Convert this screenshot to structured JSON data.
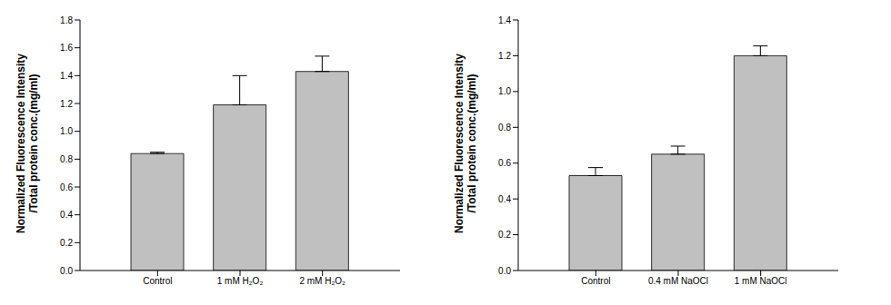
{
  "chart_data": [
    {
      "type": "bar",
      "ylabel": "Normalized Fluorescence Intensity\n/Total protein conc.(mg/ml)",
      "categories": [
        "Control",
        "1 mM H₂O₂",
        "2 mM H₂O₂"
      ],
      "values": [
        0.84,
        1.19,
        1.43
      ],
      "errors": [
        0.01,
        0.21,
        0.11
      ],
      "color": "#c0c0c0",
      "ylim": [
        0,
        1.8
      ],
      "yticks": [
        {
          "value": 0,
          "label": "0.0"
        },
        0.2,
        0.4,
        0.6,
        0.8,
        {
          "value": 1,
          "label": "1.0"
        },
        1.2,
        1.4,
        1.6,
        1.8
      ],
      "grid": false
    },
    {
      "type": "bar",
      "ylabel": "Normalized Fluorescence Intensity\n/Total protein conc.(mg/ml)",
      "categories": [
        "Control",
        "0.4 mM NaOCl",
        "1 mM NaOCl"
      ],
      "values": [
        0.53,
        0.65,
        1.2
      ],
      "errors": [
        0.045,
        0.045,
        0.055
      ],
      "color": "#c0c0c0",
      "ylim": [
        0,
        1.4
      ],
      "yticks": [
        {
          "value": 0,
          "label": "0.0"
        },
        0.2,
        0.4,
        0.6,
        0.8,
        {
          "value": 1,
          "label": "1.0"
        },
        1.2,
        1.4
      ],
      "grid": false
    }
  ]
}
